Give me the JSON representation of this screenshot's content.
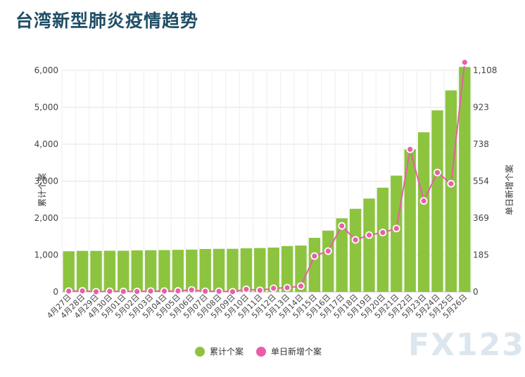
{
  "chart_data": {
    "type": "bar",
    "title": "台湾新型肺炎疫情趋势",
    "categories": [
      "4月27日",
      "4月28日",
      "4月29日",
      "4月30日",
      "5月01日",
      "5月02日",
      "5月03日",
      "5月04日",
      "5月05日",
      "5月06日",
      "5月07日",
      "5月08日",
      "5月09日",
      "5月10日",
      "5月11日",
      "5月12日",
      "5月13日",
      "5月14日",
      "5月15日",
      "5月16日",
      "5月17日",
      "5月18日",
      "5月19日",
      "5月20日",
      "5月21日",
      "5月22日",
      "5月23日",
      "5月24日",
      "5月25日",
      "5月26日"
    ],
    "series": [
      {
        "name": "累计个案",
        "type": "bar",
        "axis": "left",
        "color": "#8cc43f",
        "values": [
          1100,
          1111,
          1112,
          1114,
          1115,
          1124,
          1128,
          1132,
          1140,
          1145,
          1162,
          1166,
          1167,
          1180,
          1188,
          1201,
          1242,
          1255,
          1464,
          1660,
          1990,
          2251,
          2528,
          2822,
          3149,
          3862,
          4322,
          4917,
          5456,
          6091
        ]
      },
      {
        "name": "单日新增个案",
        "type": "line",
        "axis": "right",
        "color": "#e85fa6",
        "values": [
          4,
          5,
          1,
          3,
          2,
          2,
          4,
          4,
          5,
          10,
          3,
          3,
          1,
          13,
          8,
          18,
          21,
          29,
          179,
          204,
          330,
          260,
          284,
          297,
          317,
          713,
          455,
          597,
          541,
          1148
        ]
      }
    ],
    "ylabel": "累计个案",
    "y2label": "单日新增个案",
    "ylim": [
      0,
      6000
    ],
    "y2lim": [
      0,
      1108
    ],
    "yticks": [
      "0",
      "1,000",
      "2,000",
      "3,000",
      "4,000",
      "5,000",
      "6,000"
    ],
    "y2ticks": [
      "0",
      "185",
      "369",
      "554",
      "738",
      "923",
      "1,108"
    ],
    "grid": true,
    "legend": "bottom"
  },
  "watermark": "FX123"
}
